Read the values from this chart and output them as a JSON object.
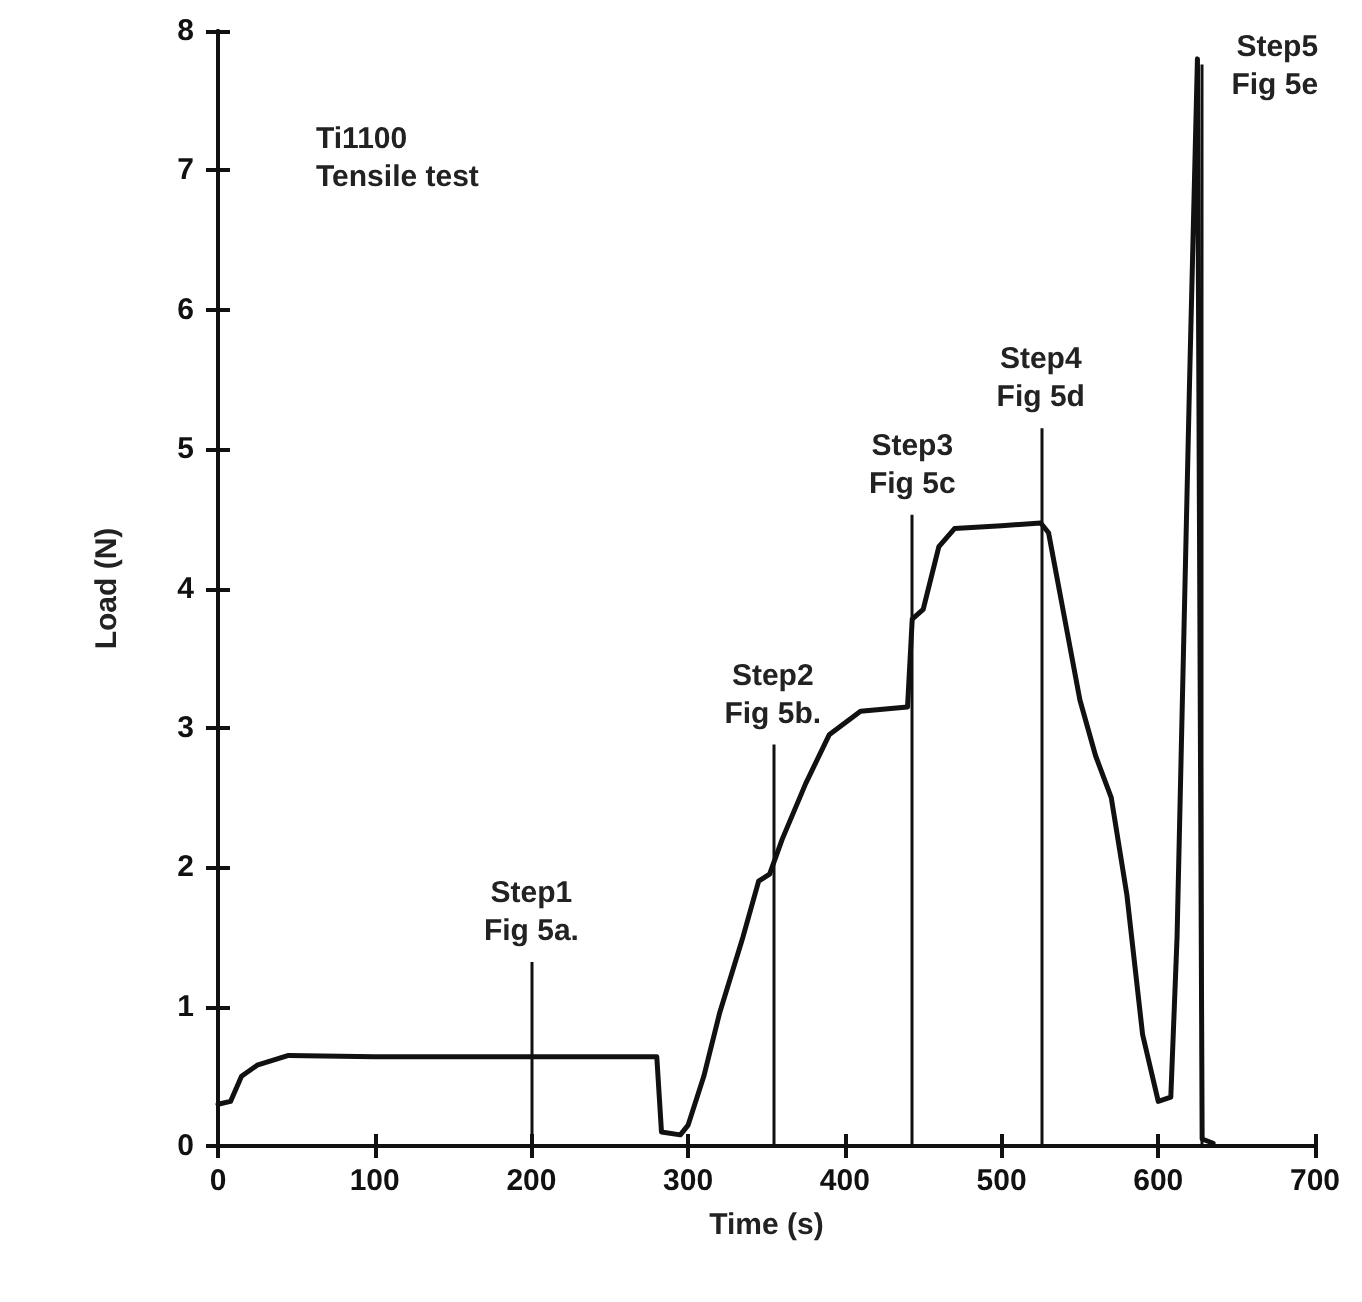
{
  "chart_data": {
    "type": "line",
    "xlabel": "Time (s)",
    "ylabel": "Load (N)",
    "xlim": [
      0,
      700
    ],
    "xticks": [
      0,
      100,
      200,
      300,
      400,
      500,
      600,
      700
    ],
    "ylim": [
      0,
      8
    ],
    "yticks": [
      0,
      1,
      2,
      3,
      4,
      5,
      6,
      7,
      8
    ],
    "grid": false,
    "marker": "none",
    "line_style": "solid",
    "series": [
      {
        "color": "#111111",
        "x": [
          0,
          8,
          15,
          25,
          45,
          100,
          150,
          200,
          250,
          280,
          283,
          295,
          300,
          310,
          320,
          335,
          345,
          352,
          360,
          375,
          390,
          410,
          440,
          443,
          450,
          460,
          470,
          500,
          525,
          530,
          540,
          550,
          560,
          570,
          580,
          590,
          600,
          608,
          612,
          617,
          620,
          625,
          628,
          635
        ],
        "values": [
          0.3,
          0.32,
          0.5,
          0.58,
          0.65,
          0.64,
          0.64,
          0.64,
          0.64,
          0.64,
          0.1,
          0.08,
          0.15,
          0.5,
          0.95,
          1.5,
          1.9,
          1.95,
          2.2,
          2.6,
          2.95,
          3.12,
          3.15,
          3.78,
          3.85,
          4.3,
          4.43,
          4.45,
          4.47,
          4.4,
          3.8,
          3.2,
          2.8,
          2.5,
          1.8,
          0.8,
          0.32,
          0.35,
          1.5,
          4,
          5.5,
          7.8,
          0.05,
          0.02
        ]
      }
    ],
    "annotations": [
      "Ti1100\nTensile test"
    ],
    "ref_lines": [
      {
        "axis": "x",
        "value": 200,
        "label": "Step1\nFig 5a."
      },
      {
        "axis": "x",
        "value": 354,
        "label": "Step2\nFig 5b."
      },
      {
        "axis": "x",
        "value": 443,
        "label": "Step3\nFig 5c"
      },
      {
        "axis": "x",
        "value": 525,
        "label": "Step4\nFig 5d"
      },
      {
        "axis": "x",
        "value": 628,
        "label": "Step5\nFig 5e"
      }
    ]
  }
}
